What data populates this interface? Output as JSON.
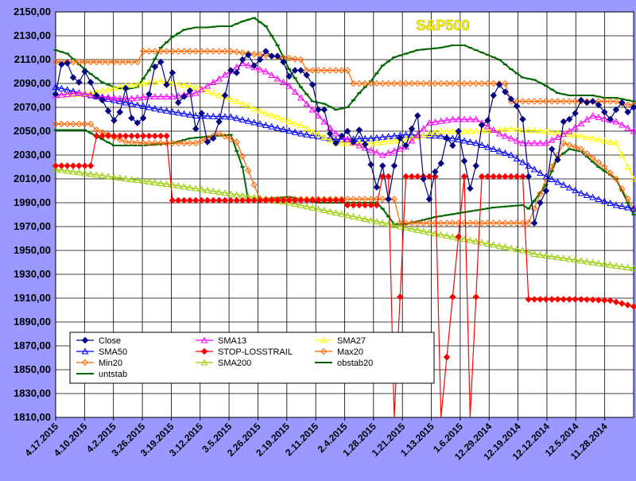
{
  "chart_data": {
    "type": "line",
    "title": "S&P500",
    "ylim": [
      1810,
      2150
    ],
    "y_ticks": [
      "2150,00",
      "2130,00",
      "2110,00",
      "2090,00",
      "2070,00",
      "2050,00",
      "2030,00",
      "2010,00",
      "1990,00",
      "1970,00",
      "1950,00",
      "1930,00",
      "1910,00",
      "1890,00",
      "1870,00",
      "1850,00",
      "1830,00",
      "1810,00"
    ],
    "x_ticks": [
      "4.17.2015",
      "4.10.2015",
      "4.2.2015",
      "3.26.2015",
      "3.19.2015",
      "3.12.2015",
      "3.5.2015",
      "2.26.2015",
      "2.19.2015",
      "2.11.2015",
      "2.4.2015",
      "1.28.2015",
      "1.21.2015",
      "1.13.2015",
      "1.6.2015",
      "12.29.2014",
      "12.19.2014",
      "12.12.2014",
      "12.5.2014",
      "11.28.2014"
    ],
    "grid": true,
    "legend_position": "bottom-left",
    "series": [
      {
        "name": "Close",
        "color": "#000080",
        "marker": "diamond",
        "x": [
          0,
          1,
          2,
          3,
          4,
          5,
          6,
          7,
          8,
          9,
          10,
          11,
          12,
          13,
          14,
          15,
          16,
          17,
          18,
          19,
          20,
          21,
          22,
          23,
          24,
          25,
          26,
          27,
          28,
          29,
          30,
          31,
          32,
          33,
          34,
          35,
          36,
          37,
          38,
          39,
          40,
          41,
          42,
          43,
          44,
          45,
          46,
          47,
          48,
          49,
          50,
          51,
          52,
          53,
          54,
          55,
          56,
          57,
          58,
          59,
          60,
          61,
          62,
          63,
          64,
          65,
          66,
          67,
          68,
          69,
          70,
          71,
          72,
          73,
          74,
          75,
          76,
          77,
          78,
          79,
          80,
          81,
          82,
          83,
          84,
          85,
          86,
          87,
          88,
          89,
          90,
          91,
          92,
          93,
          94,
          95,
          96,
          97,
          98,
          99
        ],
        "y": [
          2081,
          2106,
          2107,
          2095,
          2091,
          2100,
          2091,
          2080,
          2076,
          2067,
          2059,
          2066,
          2086,
          2061,
          2057,
          2061,
          2081,
          2104,
          2108,
          2089,
          2099,
          2074,
          2079,
          2084,
          2052,
          2065,
          2041,
          2044,
          2058,
          2080,
          2101,
          2099,
          2110,
          2114,
          2105,
          2110,
          2117,
          2113,
          2113,
          2108,
          2096,
          2101,
          2101,
          2097,
          2089,
          2068,
          2068,
          2048,
          2040,
          2046,
          2050,
          2041,
          2051,
          2039,
          2022,
          2003,
          2021,
          1993,
          2021,
          2044,
          2038,
          2052,
          2063,
          2010,
          1993,
          2016,
          2023,
          2044,
          2038,
          2050,
          2025,
          2002,
          2021,
          2055,
          2059,
          2080,
          2089,
          2083,
          2077,
          2071,
          2060,
          2012,
          1973,
          1990,
          2000,
          2035,
          2026,
          2058,
          2060,
          2065,
          2076,
          2074,
          2075,
          2072,
          2066,
          2060,
          2068,
          2074,
          2066,
          2070
        ]
      },
      {
        "name": "SMA13",
        "color": "#ff00ff",
        "marker": "triangle",
        "x": [
          0,
          4,
          8,
          12,
          16,
          20,
          24,
          28,
          32,
          36,
          40,
          44,
          48,
          52,
          56,
          60,
          64,
          68,
          72,
          76,
          80,
          84,
          88,
          92,
          96,
          99
        ],
        "y": [
          2080,
          2082,
          2079,
          2077,
          2079,
          2079,
          2082,
          2094,
          2107,
          2100,
          2088,
          2068,
          2048,
          2038,
          2030,
          2037,
          2057,
          2060,
          2060,
          2048,
          2040,
          2040,
          2050,
          2063,
          2058,
          2050
        ]
      },
      {
        "name": "SMA27",
        "color": "#ffff00",
        "marker": "triangle",
        "x": [
          0,
          6,
          12,
          18,
          24,
          30,
          36,
          42,
          48,
          54,
          60,
          66,
          72,
          78,
          84,
          90,
          96,
          99
        ],
        "y": [
          2080,
          2082,
          2088,
          2092,
          2087,
          2077,
          2065,
          2055,
          2040,
          2040,
          2043,
          2050,
          2050,
          2052,
          2050,
          2046,
          2040,
          2010
        ]
      },
      {
        "name": "SMA50",
        "color": "#0000ff",
        "marker": "triangle",
        "x": [
          0,
          6,
          12,
          18,
          24,
          30,
          36,
          42,
          48,
          54,
          60,
          66,
          72,
          78,
          84,
          90,
          96,
          99
        ],
        "y": [
          2087,
          2080,
          2074,
          2068,
          2063,
          2062,
          2055,
          2048,
          2043,
          2044,
          2047,
          2046,
          2040,
          2030,
          2012,
          1998,
          1988,
          1985
        ]
      },
      {
        "name": "STOP-LOSSTRAIL",
        "color": "#ff0000",
        "marker": "diamond",
        "x": [
          0,
          6,
          7,
          13,
          19,
          20,
          26,
          33,
          40,
          47,
          49,
          50,
          55,
          56,
          57,
          58,
          60,
          61,
          65,
          66,
          70,
          71,
          73,
          74,
          80,
          81,
          82,
          90,
          95,
          99
        ],
        "y": [
          2021,
          2021,
          2046,
          2046,
          2046,
          1992,
          1992,
          1992,
          1992,
          1992,
          1992,
          1988,
          1988,
          2012,
          2012,
          1810,
          2012,
          2012,
          2012,
          1810,
          2012,
          1810,
          2012,
          2012,
          2012,
          1909,
          1909,
          1909,
          1908,
          1903
        ]
      },
      {
        "name": "Max20",
        "color": "#ff6600",
        "marker": "diamond",
        "x": [
          0,
          14,
          15,
          30,
          42,
          43,
          50,
          51,
          66,
          77,
          78,
          84,
          96,
          98,
          99
        ],
        "y": [
          2108,
          2108,
          2117,
          2117,
          2110,
          2101,
          2101,
          2090,
          2090,
          2090,
          2075,
          2075,
          2075,
          2072,
          2072
        ]
      },
      {
        "name": "Min20",
        "color": "#ff6600",
        "marker": "diamond",
        "x": [
          0,
          6,
          7,
          12,
          15,
          24,
          28,
          31,
          35,
          45,
          50,
          58,
          59,
          66,
          72,
          80,
          81,
          82,
          84,
          87,
          90,
          94,
          96,
          99
        ],
        "y": [
          2056,
          2056,
          2051,
          2041,
          2040,
          2040,
          2048,
          2041,
          1993,
          1993,
          1993,
          1993,
          1973,
          1973,
          1973,
          1973,
          1973,
          1985,
          2010,
          2040,
          2035,
          2020,
          2010,
          1985
        ]
      },
      {
        "name": "SMA200",
        "color": "#99cc00",
        "marker": "triangle",
        "x": [
          0,
          20,
          40,
          60,
          80,
          82,
          99
        ],
        "y": [
          2018,
          2005,
          1990,
          1969,
          1950,
          1947,
          1935
        ]
      },
      {
        "name": "obstab20",
        "color": "#006600",
        "marker": "dash",
        "x": [
          0,
          5,
          10,
          15,
          20,
          23,
          25,
          30,
          32,
          33,
          40,
          45,
          50,
          55,
          56,
          58,
          60,
          65,
          70,
          75,
          80,
          81,
          84,
          86,
          88,
          90,
          93,
          96,
          99
        ],
        "y": [
          2051,
          2051,
          2038,
          2038,
          2040,
          2044,
          2045,
          2047,
          2020,
          1992,
          1995,
          1990,
          1990,
          1990,
          1985,
          1972,
          1972,
          1978,
          1982,
          1986,
          1988,
          1985,
          2005,
          2028,
          2035,
          2033,
          2020,
          2010,
          1980
        ]
      },
      {
        "name": "untstab",
        "color": "#006600",
        "marker": "dash",
        "x": [
          0,
          2,
          4,
          6,
          8,
          10,
          12,
          14,
          16,
          18,
          20,
          22,
          24,
          26,
          28,
          30,
          32,
          34,
          36,
          38,
          40,
          42,
          44,
          46,
          48,
          50,
          52,
          54,
          56,
          58,
          60,
          62,
          64,
          66,
          68,
          70,
          72,
          74,
          76,
          78,
          80,
          82,
          84,
          86,
          88,
          90,
          92,
          94,
          96,
          99
        ],
        "y": [
          2118,
          2115,
          2106,
          2098,
          2091,
          2087,
          2085,
          2087,
          2101,
          2120,
          2129,
          2135,
          2137,
          2137,
          2138,
          2138,
          2142,
          2145,
          2138,
          2122,
          2102,
          2087,
          2075,
          2073,
          2068,
          2070,
          2082,
          2092,
          2105,
          2112,
          2115,
          2118,
          2119,
          2120,
          2122,
          2122,
          2118,
          2114,
          2110,
          2102,
          2095,
          2093,
          2088,
          2082,
          2080,
          2080,
          2080,
          2078,
          2078,
          2075
        ]
      }
    ]
  }
}
